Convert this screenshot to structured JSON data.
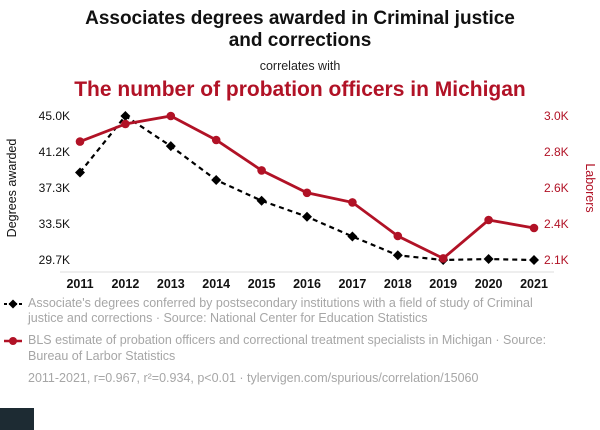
{
  "header": {
    "title": "Associates degrees awarded in Criminal justice and corrections",
    "connector": "correlates with",
    "subtitle": "The number of probation officers in Michigan"
  },
  "chart_data": {
    "type": "line",
    "x": [
      2011,
      2012,
      2013,
      2014,
      2015,
      2016,
      2017,
      2018,
      2019,
      2020,
      2021
    ],
    "x_ticks": [
      "2011",
      "2012",
      "2013",
      "2014",
      "2015",
      "2016",
      "2017",
      "2018",
      "2019",
      "2020",
      "2021"
    ],
    "series": [
      {
        "name": "Associate's degrees conferred in Criminal justice and corrections",
        "axis": "left",
        "color": "#000000",
        "style": "dashed",
        "marker": "diamond",
        "values": [
          39.0,
          45.0,
          41.8,
          38.2,
          36.0,
          34.3,
          32.2,
          30.2,
          29.7,
          29.8,
          29.7
        ]
      },
      {
        "name": "BLS estimate of probation officers in Michigan",
        "axis": "right",
        "color": "#b11226",
        "style": "solid",
        "marker": "circle",
        "values": [
          2.84,
          2.95,
          3.0,
          2.85,
          2.66,
          2.52,
          2.46,
          2.25,
          2.11,
          2.35,
          2.3
        ]
      }
    ],
    "left_axis": {
      "label": "Degrees awarded",
      "ticks": [
        "45.0K",
        "41.2K",
        "37.3K",
        "33.5K",
        "29.7K"
      ],
      "min": 29.7,
      "max": 45.0
    },
    "right_axis": {
      "label": "Laborers",
      "ticks": [
        "3.0K",
        "2.8K",
        "2.6K",
        "2.4K",
        "2.1K"
      ],
      "min": 2.1,
      "max": 3.0
    },
    "grid": false,
    "legend_position": "bottom"
  },
  "legend": [
    {
      "text": "Associate's degrees conferred by postsecondary institutions with a field of study of Criminal justice and corrections · Source: National Center for Education Statistics"
    },
    {
      "text": "BLS estimate of probation officers and correctional treatment specialists in Michigan · Source: Bureau of Larbor Statistics"
    }
  ],
  "footer": {
    "stats": "2011-2021, r=0.967, r²=0.934, p<0.01 ·",
    "link": "tylervigen.com/spurious/correlation/15060"
  },
  "colors": {
    "accent_red": "#b11226",
    "text_gray": "#a6a6a6"
  }
}
